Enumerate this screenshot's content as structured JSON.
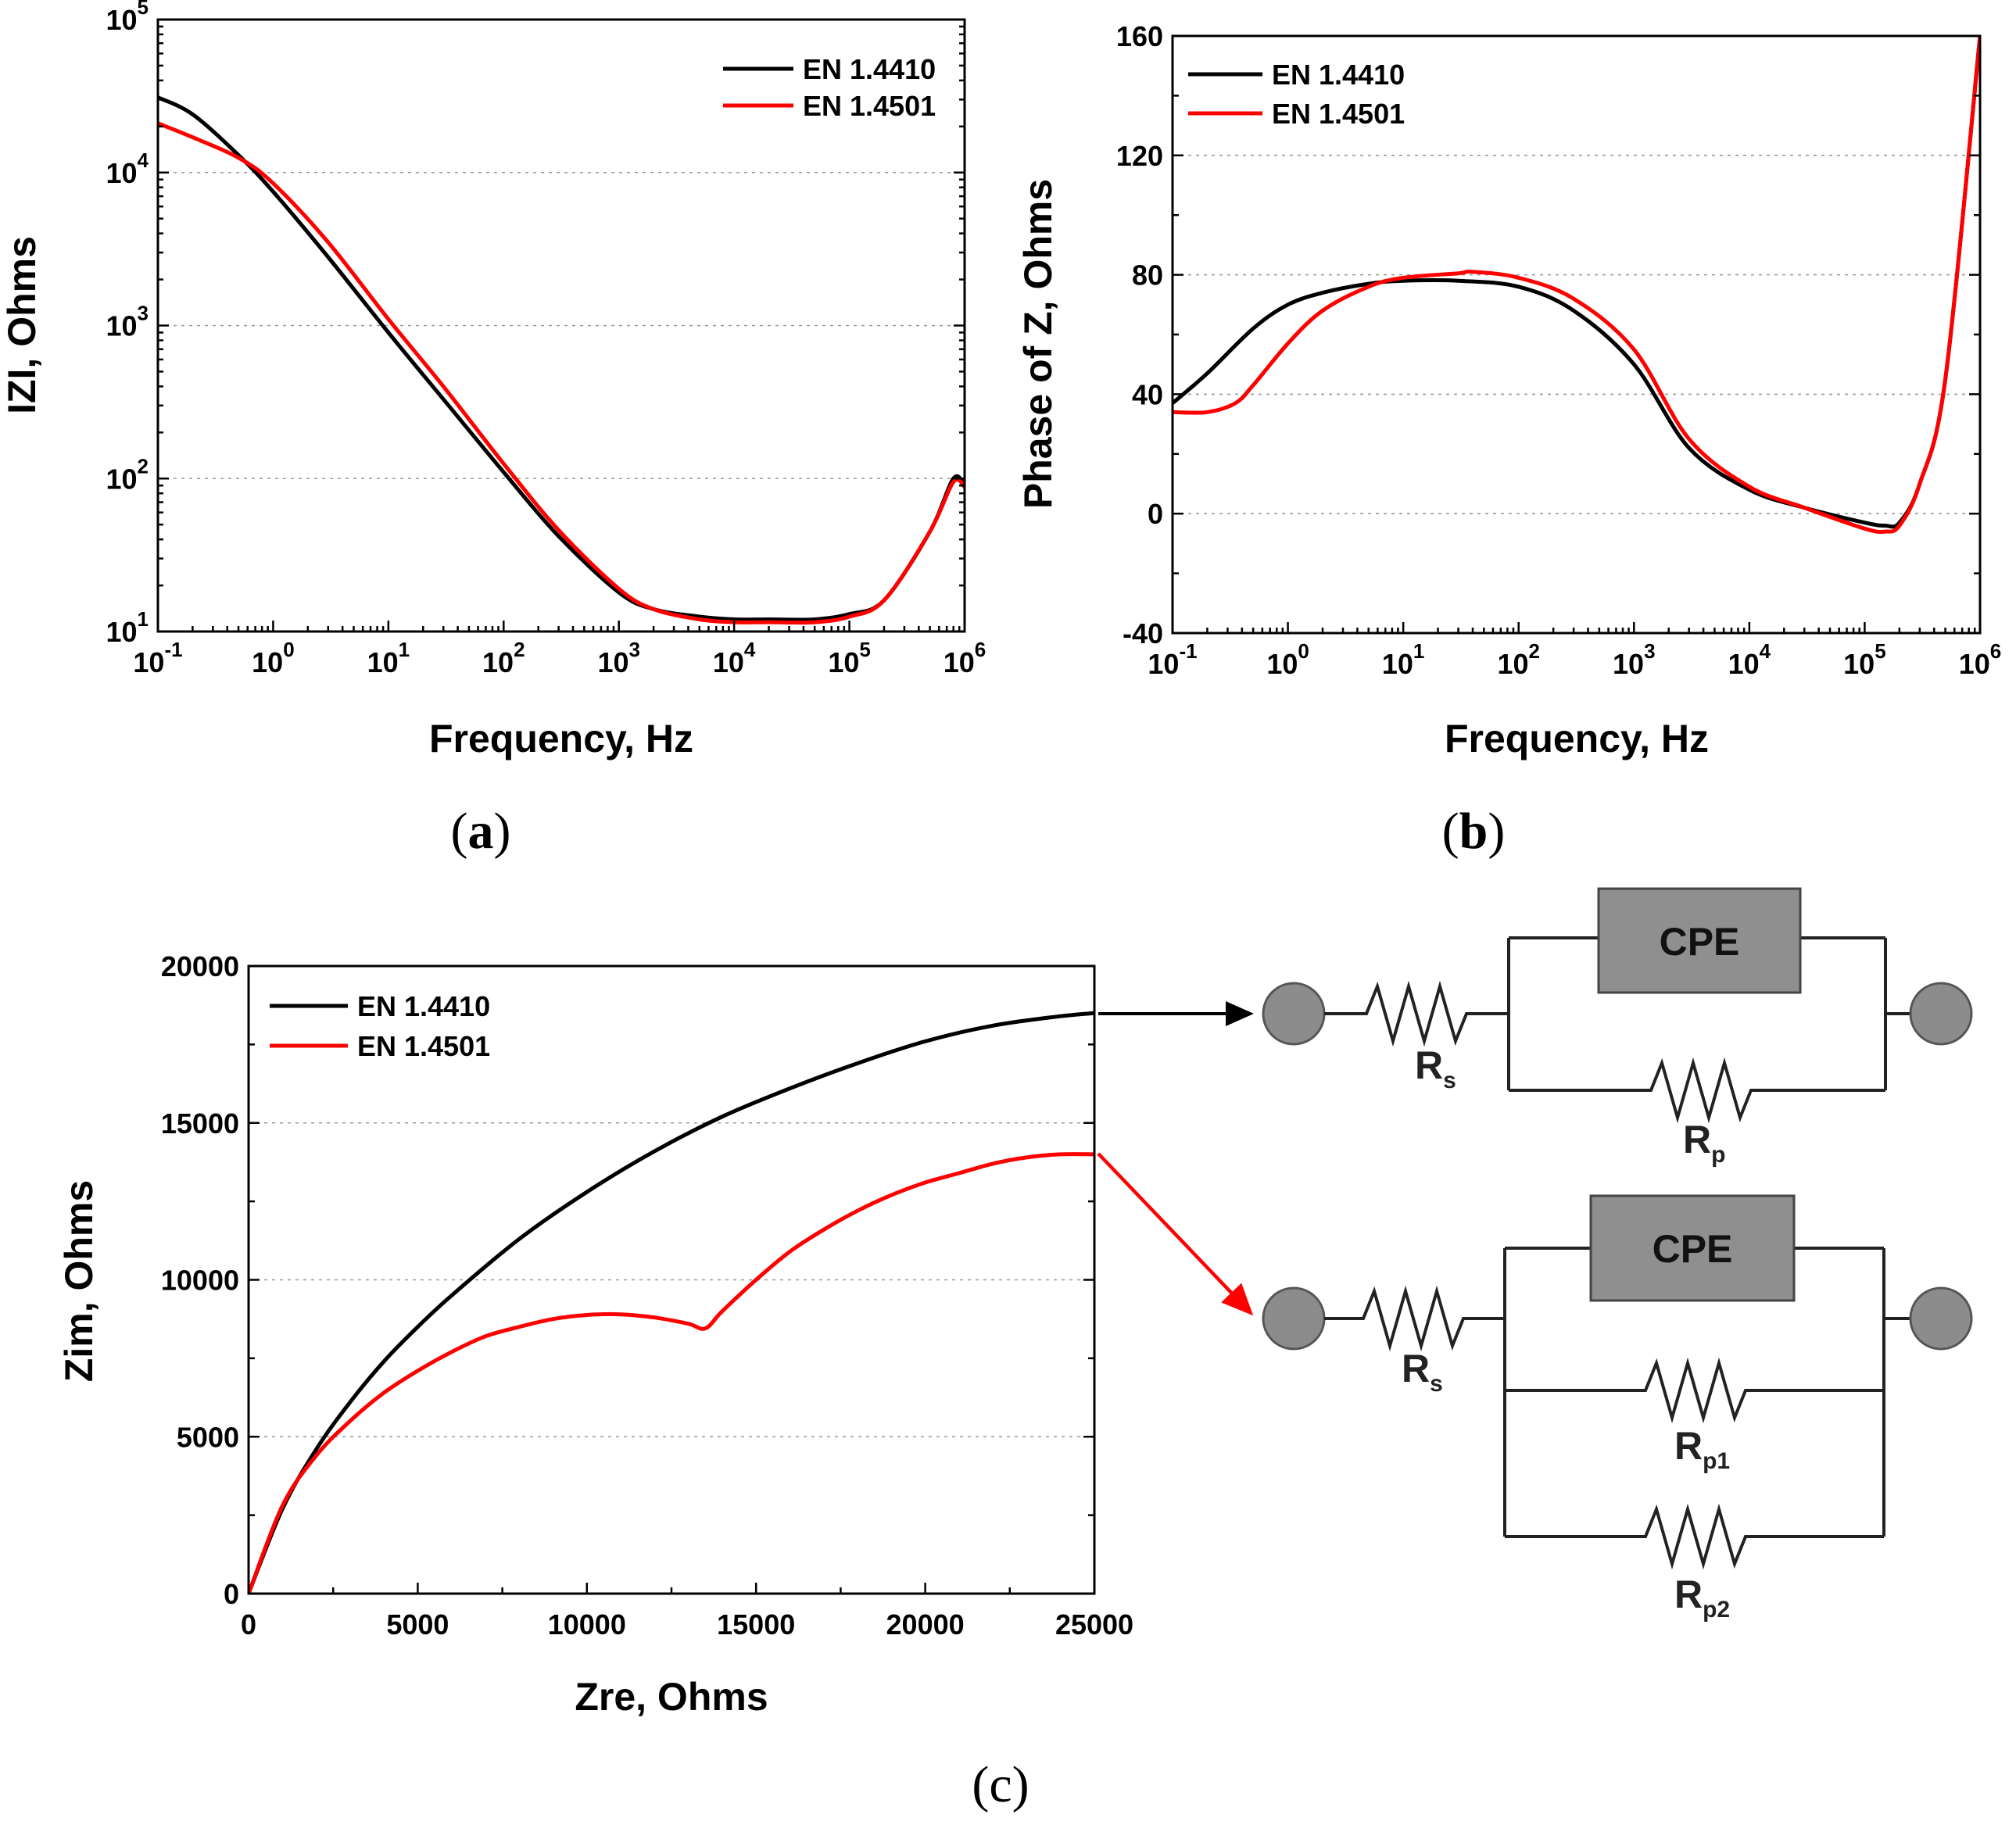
{
  "colors": {
    "black": "#000000",
    "red": "#ff0000",
    "node": "#8c8c8c",
    "cpe_fill": "#8f8f8f"
  },
  "panel_labels": {
    "a": "a",
    "b": "b",
    "c": "c"
  },
  "chart_data": [
    {
      "id": "a",
      "type": "line",
      "xscale": "log",
      "yscale": "log",
      "title": "",
      "xlabel": "Frequency, Hz",
      "ylabel": "IZI, Ohms",
      "xlim": [
        0.1,
        1000000
      ],
      "ylim": [
        10,
        100000
      ],
      "xticks": [
        {
          "base": "10",
          "exp": "-1"
        },
        {
          "base": "10",
          "exp": "0"
        },
        {
          "base": "10",
          "exp": "1"
        },
        {
          "base": "10",
          "exp": "2"
        },
        {
          "base": "10",
          "exp": "3"
        },
        {
          "base": "10",
          "exp": "4"
        },
        {
          "base": "10",
          "exp": "5"
        },
        {
          "base": "10",
          "exp": "6"
        }
      ],
      "yticks": [
        {
          "base": "10",
          "exp": "1"
        },
        {
          "base": "10",
          "exp": "2"
        },
        {
          "base": "10",
          "exp": "3"
        },
        {
          "base": "10",
          "exp": "4"
        },
        {
          "base": "10",
          "exp": "5"
        }
      ],
      "legend": "top-right",
      "series": [
        {
          "name": "EN 1.4410",
          "color": "#000000",
          "x": [
            0.1,
            0.2,
            0.5,
            1,
            3,
            10,
            30,
            100,
            300,
            1000,
            2000,
            5000,
            10000,
            20000,
            50000,
            100000,
            200000,
            500000,
            800000,
            1000000
          ],
          "y": [
            31000,
            24000,
            13000,
            7500,
            2800,
            900,
            330,
            110,
            42,
            18,
            14,
            12.5,
            12,
            12,
            12,
            13,
            16,
            45,
            100,
            90
          ]
        },
        {
          "name": "EN 1.4501",
          "color": "#ff0000",
          "x": [
            0.1,
            0.2,
            0.5,
            1,
            3,
            10,
            30,
            100,
            300,
            1000,
            2000,
            5000,
            10000,
            20000,
            50000,
            100000,
            200000,
            500000,
            800000,
            1000000
          ],
          "y": [
            21000,
            17000,
            12500,
            8500,
            3500,
            1100,
            400,
            125,
            46,
            19,
            14,
            12,
            11.5,
            11.5,
            11.5,
            12.5,
            16,
            45,
            95,
            88
          ]
        }
      ]
    },
    {
      "id": "b",
      "type": "line",
      "xscale": "log",
      "title": "",
      "xlabel": "Frequency, Hz",
      "ylabel": "Phase of Z, Ohms",
      "xlim": [
        0.1,
        1000000
      ],
      "ylim": [
        -40,
        160
      ],
      "xticks": [
        {
          "base": "10",
          "exp": "-1"
        },
        {
          "base": "10",
          "exp": "0"
        },
        {
          "base": "10",
          "exp": "1"
        },
        {
          "base": "10",
          "exp": "2"
        },
        {
          "base": "10",
          "exp": "3"
        },
        {
          "base": "10",
          "exp": "4"
        },
        {
          "base": "10",
          "exp": "5"
        },
        {
          "base": "10",
          "exp": "6"
        }
      ],
      "yticks": [
        "-40",
        "0",
        "40",
        "80",
        "120",
        "160"
      ],
      "legend": "top-left",
      "series": [
        {
          "name": "EN 1.4410",
          "color": "#000000",
          "x": [
            0.1,
            0.2,
            0.5,
            1,
            2,
            5,
            10,
            30,
            100,
            300,
            1000,
            3000,
            10000,
            30000,
            100000,
            150000,
            200000,
            300000,
            500000,
            1000000
          ],
          "y": [
            37,
            47,
            62,
            70,
            74,
            77,
            78,
            78,
            76,
            68,
            50,
            22,
            8,
            2,
            -3,
            -4,
            -3,
            10,
            45,
            160
          ]
        },
        {
          "name": "EN 1.4501",
          "color": "#ff0000",
          "x": [
            0.1,
            0.2,
            0.35,
            0.5,
            1,
            2,
            5,
            10,
            30,
            40,
            100,
            300,
            1000,
            3000,
            10000,
            30000,
            100000,
            150000,
            200000,
            300000,
            500000,
            1000000
          ],
          "y": [
            34,
            34,
            37,
            43,
            57,
            68,
            76,
            79,
            80.5,
            81,
            79,
            72,
            55,
            25,
            9,
            2,
            -5,
            -6,
            -4,
            10,
            45,
            160
          ]
        }
      ]
    },
    {
      "id": "c",
      "type": "line",
      "title": "",
      "xlabel": "Zre, Ohms",
      "ylabel": "Zim, Ohms",
      "xlim": [
        0,
        25000
      ],
      "ylim": [
        0,
        20000
      ],
      "xticks": [
        "0",
        "5000",
        "10000",
        "15000",
        "20000",
        "25000"
      ],
      "yticks": [
        "0",
        "5000",
        "10000",
        "15000",
        "20000"
      ],
      "legend": "top-left",
      "series": [
        {
          "name": "EN 1.4410",
          "color": "#000000",
          "x": [
            0,
            1000,
            2000,
            3000,
            4000,
            5000,
            6000,
            8000,
            10000,
            12000,
            14000,
            16000,
            18000,
            20000,
            22000,
            24000,
            25000
          ],
          "y": [
            0,
            2700,
            4600,
            6100,
            7400,
            8500,
            9500,
            11300,
            12800,
            14100,
            15200,
            16100,
            16900,
            17600,
            18100,
            18400,
            18500
          ]
        },
        {
          "name": "EN 1.4501",
          "color": "#ff0000",
          "x": [
            0,
            1000,
            2000,
            3000,
            4000,
            5000,
            6000,
            7000,
            8000,
            9000,
            10000,
            11000,
            12000,
            13000,
            13500,
            14000,
            15000,
            16000,
            17000,
            18000,
            19000,
            20000,
            21000,
            22000,
            23000,
            24000,
            25000
          ],
          "y": [
            0,
            2800,
            4400,
            5500,
            6400,
            7100,
            7700,
            8200,
            8500,
            8750,
            8880,
            8900,
            8800,
            8600,
            8450,
            9000,
            10000,
            10900,
            11600,
            12200,
            12700,
            13100,
            13400,
            13700,
            13900,
            14000,
            14000
          ]
        }
      ]
    }
  ],
  "circuits": {
    "top": {
      "cpe_label": "CPE",
      "rs": {
        "main": "R",
        "sub": "s"
      },
      "rp": {
        "main": "R",
        "sub": "p"
      }
    },
    "bottom": {
      "cpe_label": "CPE",
      "rs": {
        "main": "R",
        "sub": "s"
      },
      "rp1": {
        "main": "R",
        "sub": "p1"
      },
      "rp2": {
        "main": "R",
        "sub": "p2"
      }
    }
  }
}
